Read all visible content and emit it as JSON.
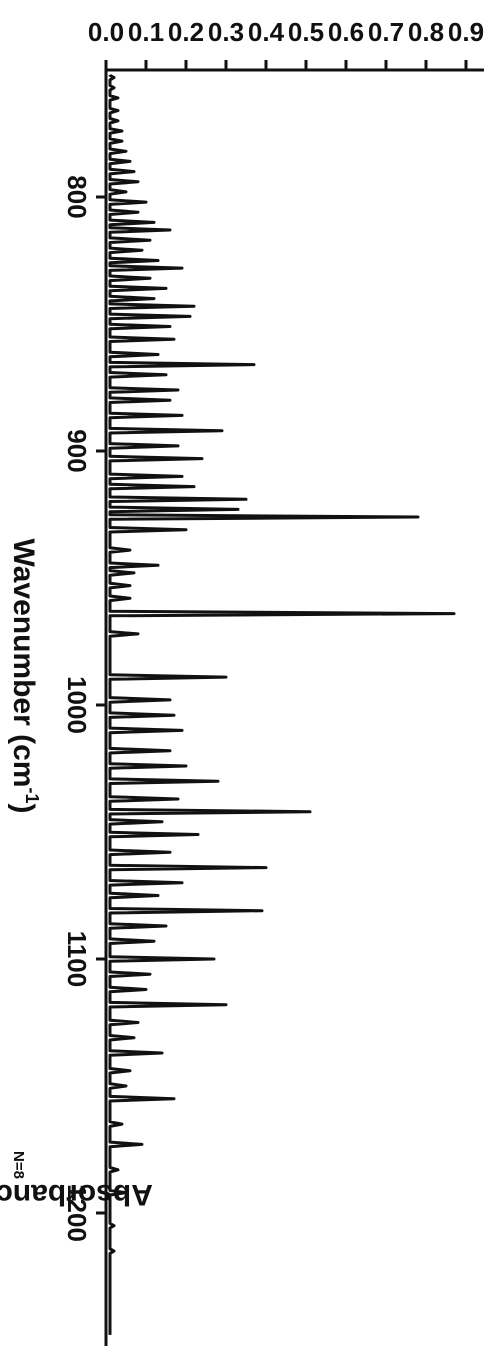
{
  "chart_data": {
    "type": "line",
    "title": "",
    "xlabel": "Wavenumber (cm-1)",
    "xlabel_base": "Wavenumber (cm",
    "xlabel_sup": "-1",
    "xlabel_tail": ")",
    "ylabel": "Absorbance (A.U.)",
    "corner_note": "N=8",
    "xlim": [
      750,
      1250
    ],
    "ylim": [
      0,
      0.93
    ],
    "x_ticks": [
      800,
      900,
      1000,
      1100,
      1200
    ],
    "x_tick_labels": [
      "800",
      "900",
      "1000",
      "1100",
      "1200"
    ],
    "y_ticks": [
      0.0,
      0.1,
      0.2,
      0.3,
      0.4,
      0.5,
      0.6,
      0.7,
      0.8,
      0.9
    ],
    "y_tick_labels": [
      "0.0",
      "0.1",
      "0.2",
      "0.3",
      "0.4",
      "0.5",
      "0.6",
      "0.7",
      "0.8",
      "0.9"
    ],
    "grid": false,
    "legend": "none",
    "series": [
      {
        "peaks": [
          {
            "x": 753,
            "y": 0.02
          },
          {
            "x": 757,
            "y": 0.02
          },
          {
            "x": 761,
            "y": 0.03
          },
          {
            "x": 766,
            "y": 0.03
          },
          {
            "x": 770,
            "y": 0.03
          },
          {
            "x": 774,
            "y": 0.04
          },
          {
            "x": 778,
            "y": 0.04
          },
          {
            "x": 782,
            "y": 0.05
          },
          {
            "x": 786,
            "y": 0.06
          },
          {
            "x": 790,
            "y": 0.07
          },
          {
            "x": 794,
            "y": 0.08
          },
          {
            "x": 798,
            "y": 0.05
          },
          {
            "x": 802,
            "y": 0.1
          },
          {
            "x": 806,
            "y": 0.08
          },
          {
            "x": 810,
            "y": 0.12
          },
          {
            "x": 813,
            "y": 0.16
          },
          {
            "x": 817,
            "y": 0.11
          },
          {
            "x": 821,
            "y": 0.09
          },
          {
            "x": 825,
            "y": 0.13
          },
          {
            "x": 828,
            "y": 0.19
          },
          {
            "x": 832,
            "y": 0.11
          },
          {
            "x": 836,
            "y": 0.15
          },
          {
            "x": 840,
            "y": 0.12
          },
          {
            "x": 843,
            "y": 0.22
          },
          {
            "x": 847,
            "y": 0.21
          },
          {
            "x": 851,
            "y": 0.16
          },
          {
            "x": 856,
            "y": 0.17
          },
          {
            "x": 862,
            "y": 0.13
          },
          {
            "x": 866,
            "y": 0.37
          },
          {
            "x": 870,
            "y": 0.15
          },
          {
            "x": 876,
            "y": 0.18
          },
          {
            "x": 880,
            "y": 0.16
          },
          {
            "x": 886,
            "y": 0.19
          },
          {
            "x": 892,
            "y": 0.29
          },
          {
            "x": 898,
            "y": 0.18
          },
          {
            "x": 903,
            "y": 0.24
          },
          {
            "x": 910,
            "y": 0.19
          },
          {
            "x": 914,
            "y": 0.22
          },
          {
            "x": 919,
            "y": 0.35
          },
          {
            "x": 923,
            "y": 0.33
          },
          {
            "x": 926,
            "y": 0.78
          },
          {
            "x": 931,
            "y": 0.2
          },
          {
            "x": 939,
            "y": 0.06
          },
          {
            "x": 945,
            "y": 0.13
          },
          {
            "x": 948,
            "y": 0.07
          },
          {
            "x": 953,
            "y": 0.06
          },
          {
            "x": 958,
            "y": 0.06
          },
          {
            "x": 964,
            "y": 0.87
          },
          {
            "x": 972,
            "y": 0.08
          },
          {
            "x": 989,
            "y": 0.3
          },
          {
            "x": 998,
            "y": 0.16
          },
          {
            "x": 1004,
            "y": 0.17
          },
          {
            "x": 1010,
            "y": 0.19
          },
          {
            "x": 1018,
            "y": 0.16
          },
          {
            "x": 1024,
            "y": 0.2
          },
          {
            "x": 1030,
            "y": 0.28
          },
          {
            "x": 1037,
            "y": 0.18
          },
          {
            "x": 1042,
            "y": 0.51
          },
          {
            "x": 1046,
            "y": 0.14
          },
          {
            "x": 1051,
            "y": 0.23
          },
          {
            "x": 1058,
            "y": 0.16
          },
          {
            "x": 1064,
            "y": 0.4
          },
          {
            "x": 1070,
            "y": 0.19
          },
          {
            "x": 1075,
            "y": 0.13
          },
          {
            "x": 1081,
            "y": 0.39
          },
          {
            "x": 1087,
            "y": 0.15
          },
          {
            "x": 1093,
            "y": 0.12
          },
          {
            "x": 1100,
            "y": 0.27
          },
          {
            "x": 1106,
            "y": 0.11
          },
          {
            "x": 1112,
            "y": 0.1
          },
          {
            "x": 1118,
            "y": 0.3
          },
          {
            "x": 1125,
            "y": 0.08
          },
          {
            "x": 1131,
            "y": 0.07
          },
          {
            "x": 1137,
            "y": 0.14
          },
          {
            "x": 1144,
            "y": 0.06
          },
          {
            "x": 1150,
            "y": 0.05
          },
          {
            "x": 1155,
            "y": 0.17
          },
          {
            "x": 1165,
            "y": 0.04
          },
          {
            "x": 1173,
            "y": 0.09
          },
          {
            "x": 1183,
            "y": 0.03
          },
          {
            "x": 1192,
            "y": 0.05
          },
          {
            "x": 1205,
            "y": 0.02
          },
          {
            "x": 1215,
            "y": 0.02
          },
          {
            "x": 1230,
            "y": 0.01
          },
          {
            "x": 1244,
            "y": 0.01
          }
        ]
      }
    ]
  }
}
